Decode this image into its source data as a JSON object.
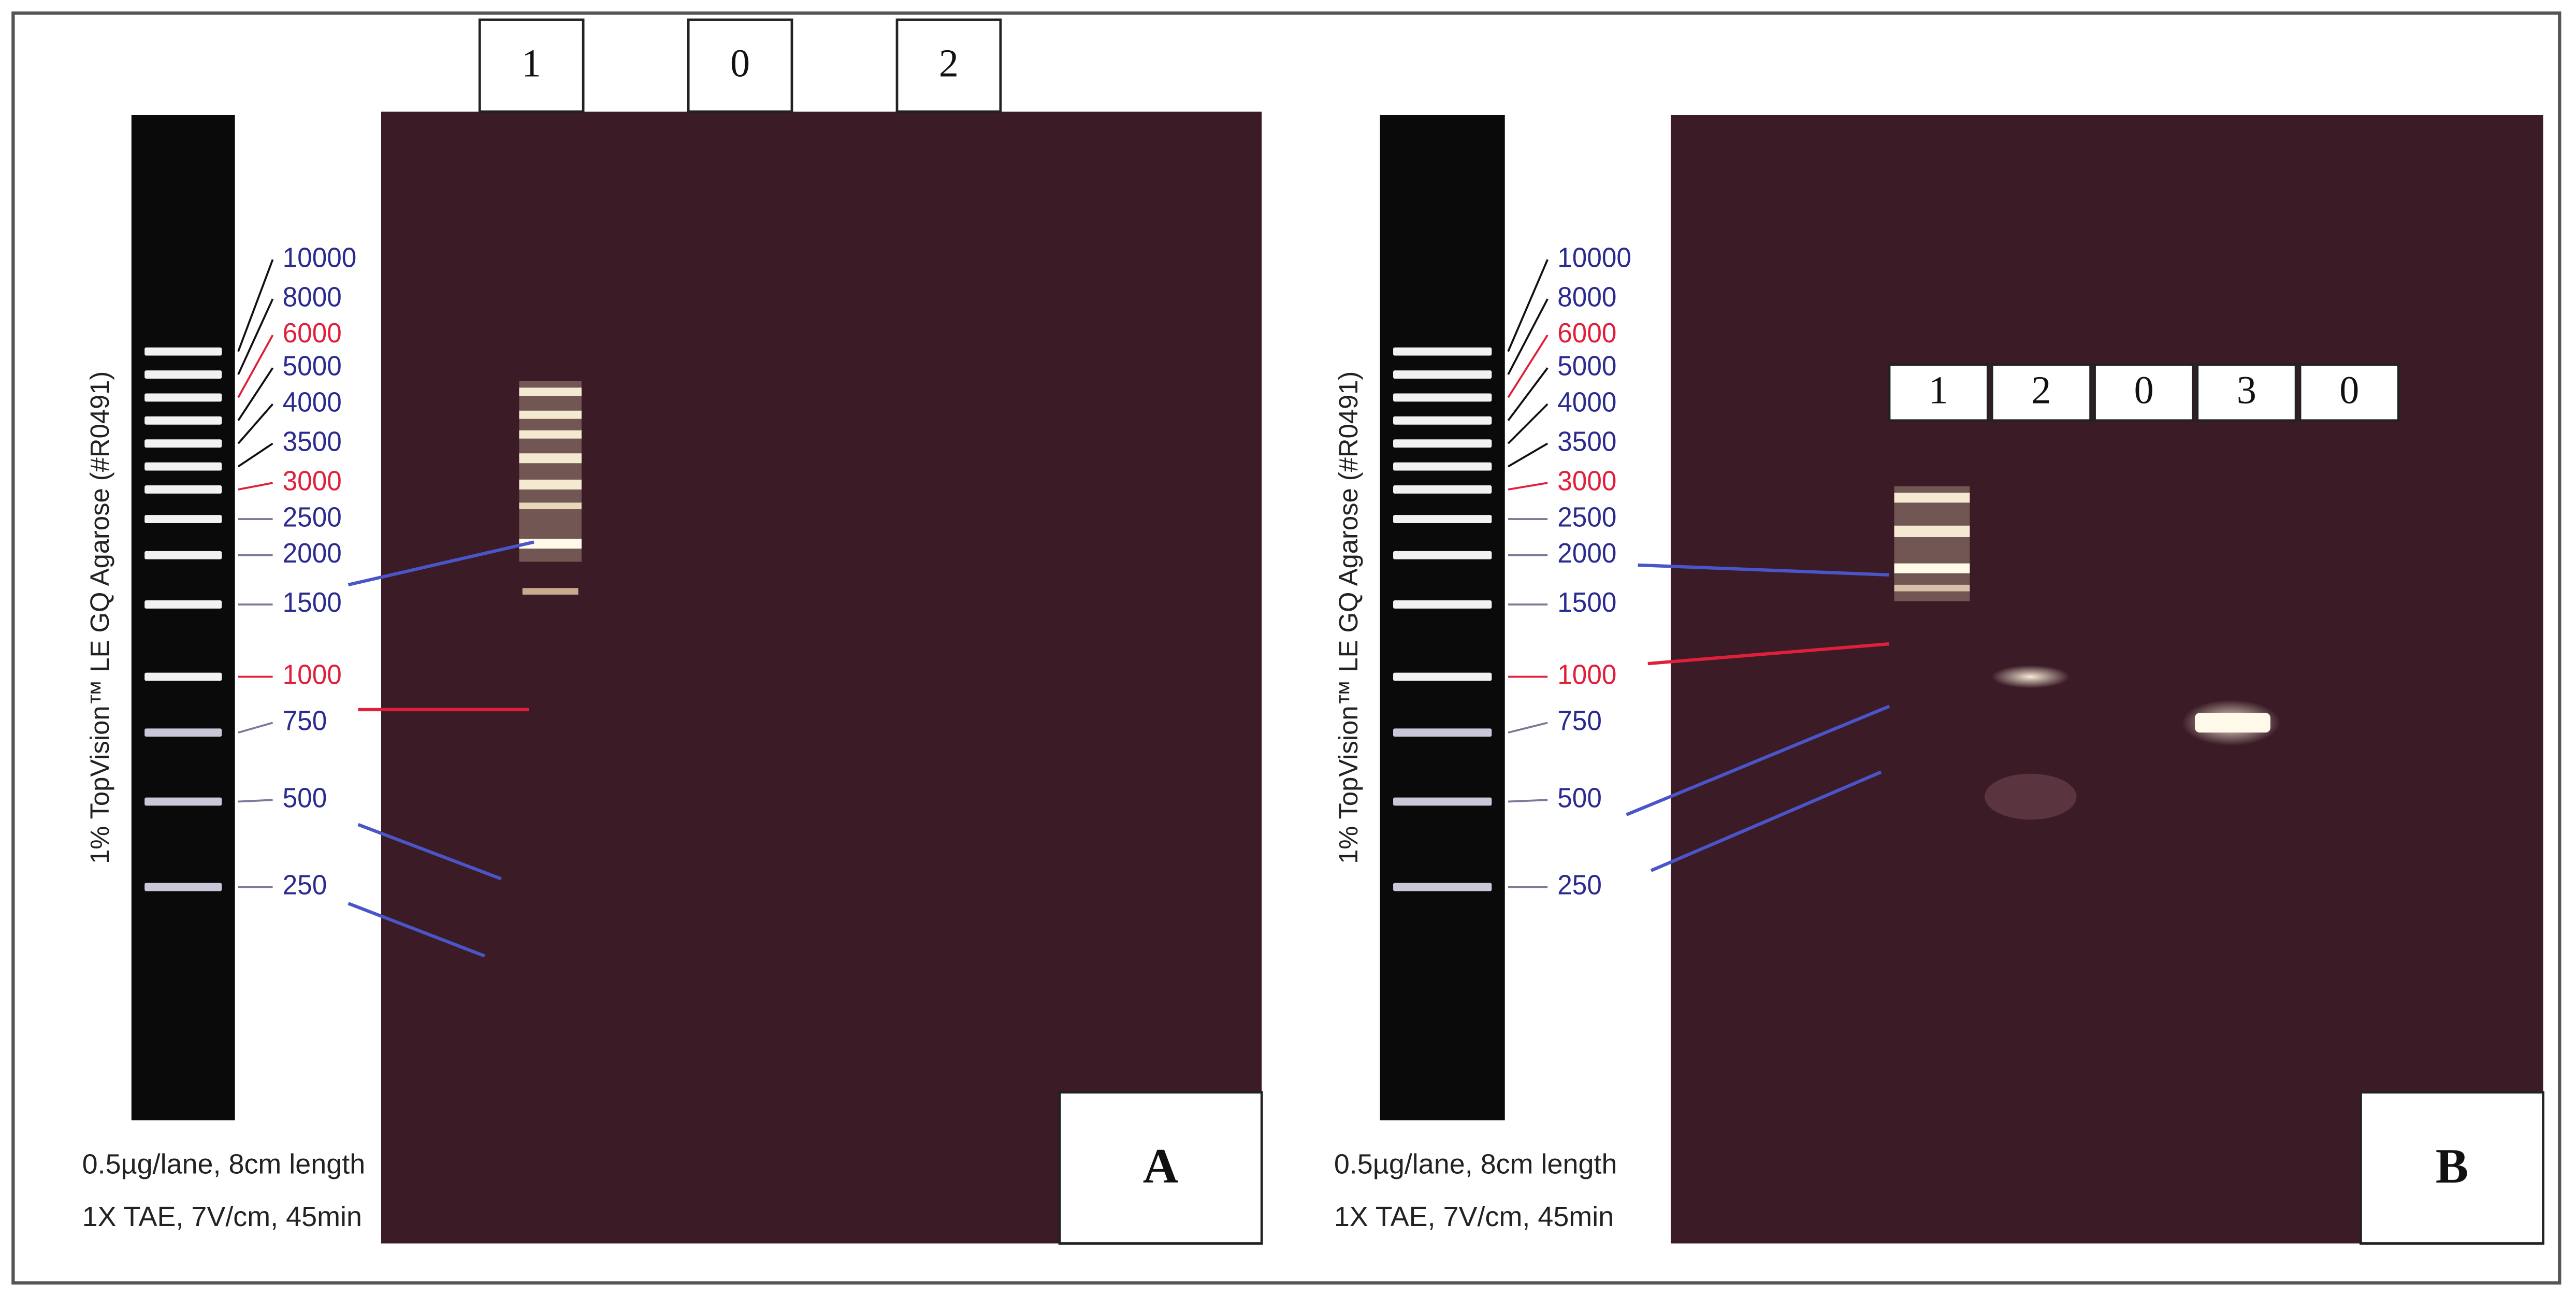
{
  "panels": [
    {
      "letter": "A",
      "lanes": [
        "1",
        "0",
        "2"
      ],
      "side_label": "1% TopVision™ LE GQ Agarose (#R0491)",
      "caption": [
        "0.5µg/lane, 8cm length",
        "1X TAE, 7V/cm, 45min"
      ],
      "ladder": [
        {
          "label": "10000",
          "color": "#2b2b8f"
        },
        {
          "label": "8000",
          "color": "#2b2b8f"
        },
        {
          "label": "6000",
          "color": "#e0203a"
        },
        {
          "label": "5000",
          "color": "#2b2b8f"
        },
        {
          "label": "4000",
          "color": "#2b2b8f"
        },
        {
          "label": "3500",
          "color": "#2b2b8f"
        },
        {
          "label": "3000",
          "color": "#e0203a"
        },
        {
          "label": "2500",
          "color": "#2b2b8f"
        },
        {
          "label": "2000",
          "color": "#2b2b8f"
        },
        {
          "label": "1500",
          "color": "#2b2b8f"
        },
        {
          "label": "1000",
          "color": "#e0203a"
        },
        {
          "label": "750",
          "color": "#2b2b8f"
        },
        {
          "label": "500",
          "color": "#2b2b8f"
        },
        {
          "label": "250",
          "color": "#2b2b8f"
        }
      ]
    },
    {
      "letter": "B",
      "lanes": [
        "1",
        "2",
        "0",
        "3",
        "0"
      ],
      "side_label": "1% TopVision™ LE GQ Agarose (#R0491)",
      "caption": [
        "0.5µg/lane, 8cm length",
        "1X TAE, 7V/cm, 45min"
      ],
      "ladder": [
        {
          "label": "10000",
          "color": "#2b2b8f"
        },
        {
          "label": "8000",
          "color": "#2b2b8f"
        },
        {
          "label": "6000",
          "color": "#e0203a"
        },
        {
          "label": "5000",
          "color": "#2b2b8f"
        },
        {
          "label": "4000",
          "color": "#2b2b8f"
        },
        {
          "label": "3500",
          "color": "#2b2b8f"
        },
        {
          "label": "3000",
          "color": "#e0203a"
        },
        {
          "label": "2500",
          "color": "#2b2b8f"
        },
        {
          "label": "2000",
          "color": "#2b2b8f"
        },
        {
          "label": "1500",
          "color": "#2b2b8f"
        },
        {
          "label": "1000",
          "color": "#e0203a"
        },
        {
          "label": "750",
          "color": "#2b2b8f"
        },
        {
          "label": "500",
          "color": "#2b2b8f"
        },
        {
          "label": "250",
          "color": "#2b2b8f"
        }
      ]
    }
  ]
}
